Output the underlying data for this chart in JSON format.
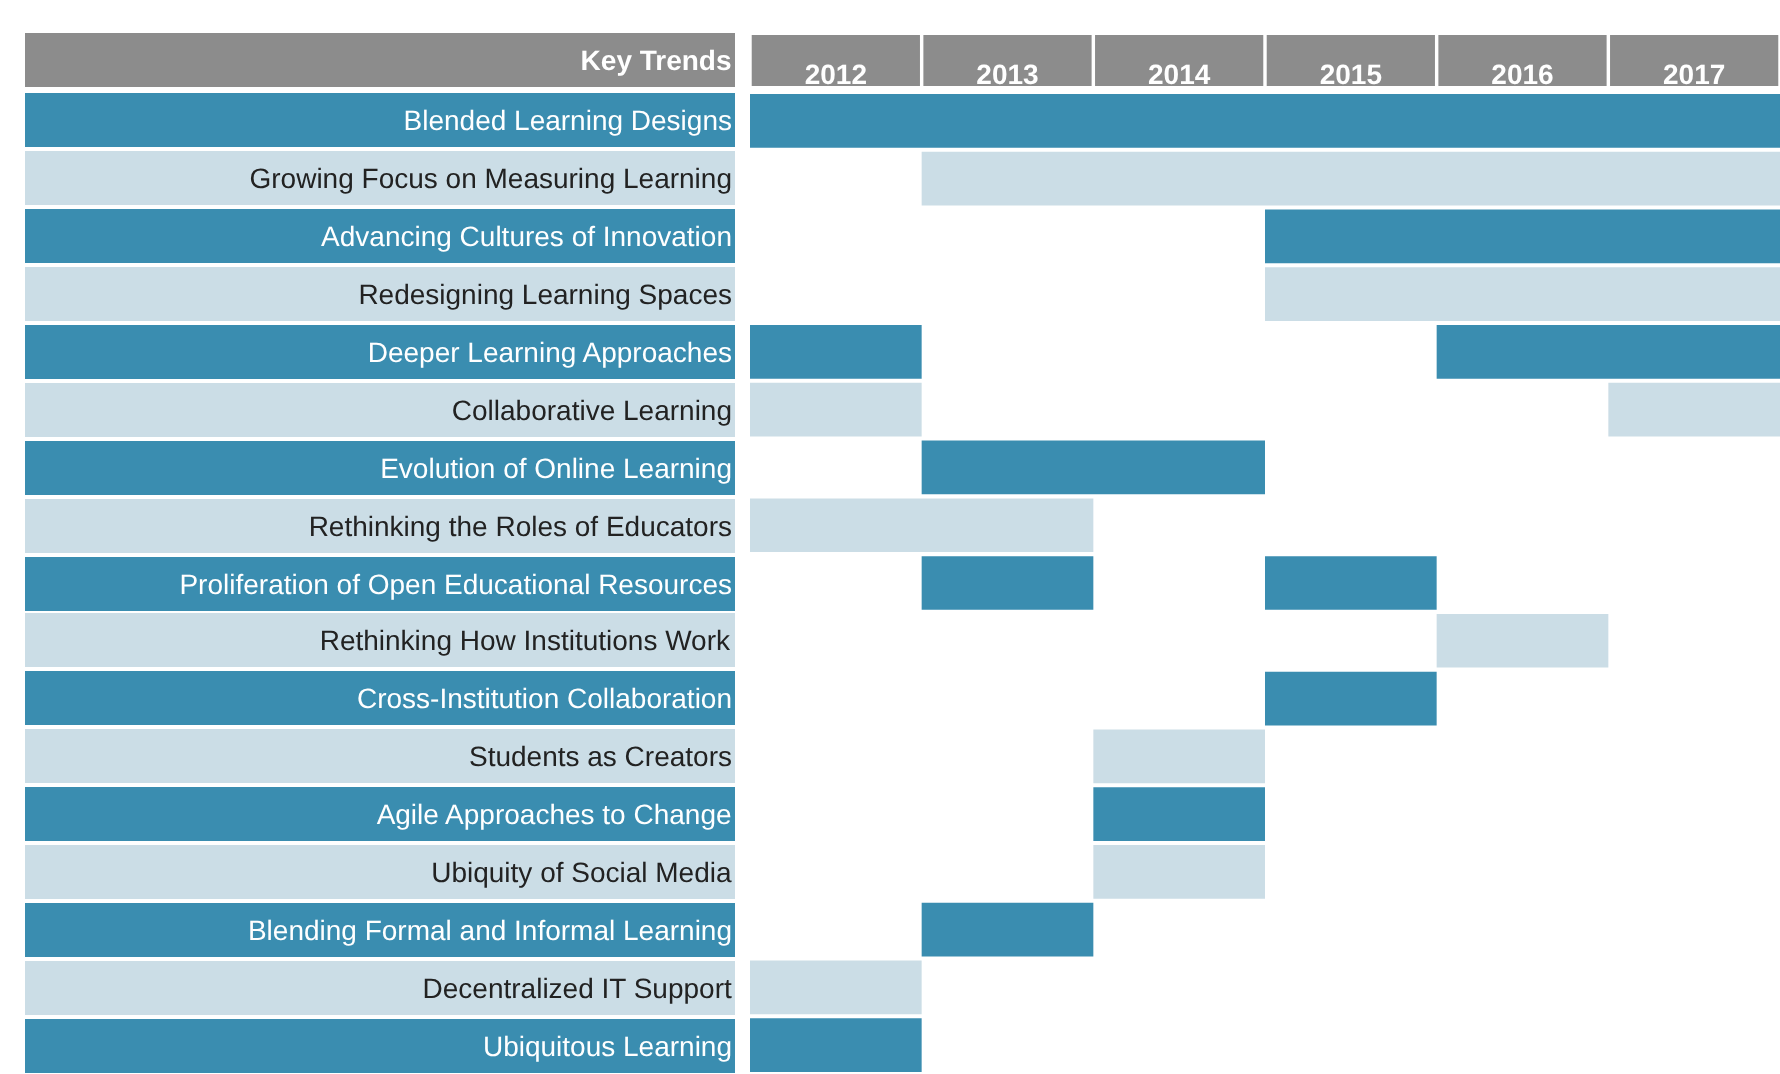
{
  "chart_data": {
    "type": "bar",
    "orientation": "horizontal",
    "ylabel": "Key Trends",
    "categories": [
      "Blended Learning Designs",
      "Growing Focus on Measuring Learning",
      "Advancing Cultures of Innovation",
      "Redesigning Learning Spaces",
      "Deeper Learning Approaches",
      "Collaborative Learning",
      "Evolution of Online Learning",
      "Rethinking the Roles of Educators",
      "Proliferation of Open Educational Resources",
      "Rethinking How Institutions Work",
      "Cross-Institution Collaboration",
      "Students as Creators",
      "Agile Approaches to Change",
      "Ubiquity of Social Media",
      "Blending Formal and Informal Learning",
      "Decentralized IT Support",
      "Ubiquitous Learning"
    ],
    "series": [
      {
        "base": [
          2012,
          2013,
          2015,
          2015,
          2012,
          2012,
          2013,
          2012,
          2013,
          2016,
          2015,
          2014,
          2014,
          2014,
          2013,
          2012,
          2012
        ],
        "values": [
          6,
          5,
          3,
          3,
          1,
          1,
          2,
          2,
          1,
          1,
          1,
          1,
          1,
          1,
          1,
          1,
          1
        ],
        "colors": [
          "#3a8db0",
          "#cbdde6",
          "#3a8db0",
          "#cbdde6",
          "#3a8db0",
          "#cbdde6",
          "#3a8db0",
          "#cbdde6",
          "#3a8db0",
          "#cbdde6",
          "#3a8db0",
          "#cbdde6",
          "#3a8db0",
          "#cbdde6",
          "#3a8db0",
          "#cbdde6",
          "#3a8db0"
        ]
      },
      {
        "base": [
          null,
          null,
          null,
          null,
          2016,
          2017,
          null,
          null,
          2015,
          null,
          null,
          null,
          null,
          null,
          null,
          null,
          null
        ],
        "values": [
          null,
          null,
          null,
          null,
          2,
          1,
          null,
          null,
          1,
          null,
          null,
          null,
          null,
          null,
          null,
          null,
          null
        ],
        "colors": [
          "#3a8db0",
          "#cbdde6",
          "#3a8db0",
          "#cbdde6",
          "#3a8db0",
          "#cbdde6",
          "#3a8db0",
          "#cbdde6",
          "#3a8db0",
          "#cbdde6",
          "#3a8db0",
          "#cbdde6",
          "#3a8db0",
          "#cbdde6",
          "#3a8db0",
          "#cbdde6",
          "#3a8db0"
        ]
      }
    ],
    "xlim": [
      2012,
      2018
    ],
    "xticks": [
      {
        "value": 2012.5,
        "label": "2012"
      },
      {
        "value": 2013.5,
        "label": "2013"
      },
      {
        "value": 2014.5,
        "label": "2014"
      },
      {
        "value": 2015.5,
        "label": "2015"
      },
      {
        "value": 2016.5,
        "label": "2016"
      },
      {
        "value": 2017.5,
        "label": "2017"
      }
    ]
  }
}
